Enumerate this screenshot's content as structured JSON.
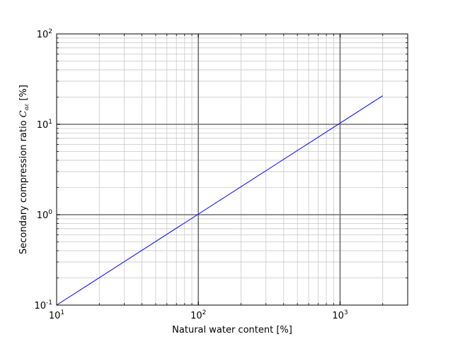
{
  "chart_data": {
    "type": "line",
    "title": "",
    "xlabel": "Natural water content [%]",
    "ylabel_prefix": "Secondary compression ratio ",
    "ylabel_symbol": "C",
    "ylabel_subscript": "αε",
    "ylabel_suffix": " [%]",
    "xscale": "log",
    "yscale": "log",
    "xlim": [
      10,
      3000
    ],
    "ylim": [
      0.1,
      100
    ],
    "grid": "on (major and minor)",
    "x_ticks": [
      {
        "base": "10",
        "exp": "1",
        "value": 10
      },
      {
        "base": "10",
        "exp": "2",
        "value": 100
      },
      {
        "base": "10",
        "exp": "3",
        "value": 1000
      }
    ],
    "y_ticks": [
      {
        "base": "10",
        "exp": "-1",
        "value": 0.1
      },
      {
        "base": "10",
        "exp": "0",
        "value": 1
      },
      {
        "base": "10",
        "exp": "1",
        "value": 10
      },
      {
        "base": "10",
        "exp": "2",
        "value": 100
      }
    ],
    "series": [
      {
        "color": "#0000ff",
        "x": [
          10,
          2000
        ],
        "y": [
          0.1,
          20.7
        ]
      }
    ]
  }
}
